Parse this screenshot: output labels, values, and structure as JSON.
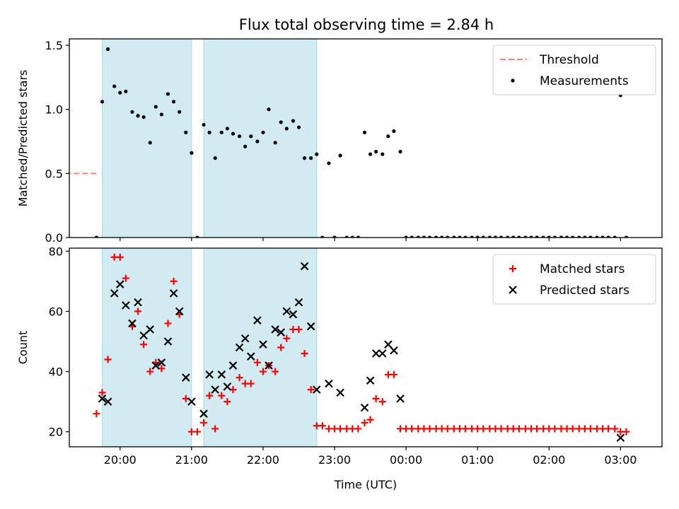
{
  "title": "Flux total observing time = 2.84 h",
  "chart_data": [
    {
      "type": "scatter",
      "ylabel": "Matched/Predicted stars",
      "ylim": [
        0,
        1.55
      ],
      "yticks": [
        0.0,
        0.5,
        1.0,
        1.5
      ],
      "ytick_labels": [
        "0.0",
        "0.5",
        "1.0",
        "1.5"
      ],
      "legend_position": "top-right",
      "series": [
        {
          "name": "Threshold",
          "kind": "line",
          "style": "dashed",
          "color": "#ff7f7f",
          "x": [
            19.67,
            3.06
          ],
          "y": [
            0.5,
            0.5
          ]
        },
        {
          "name": "Measurements",
          "kind": "dots",
          "color": "#000000",
          "x": [
            19.67,
            19.75,
            19.83,
            19.92,
            20.0,
            20.08,
            20.17,
            20.25,
            20.33,
            20.42,
            20.5,
            20.58,
            20.67,
            20.75,
            20.83,
            20.92,
            21.0,
            21.08,
            21.17,
            21.25,
            21.33,
            21.42,
            21.5,
            21.58,
            21.67,
            21.75,
            21.83,
            21.92,
            22.0,
            22.08,
            22.17,
            22.25,
            22.33,
            22.42,
            22.5,
            22.58,
            22.67,
            22.75,
            22.83,
            22.92,
            23.0,
            23.08,
            23.17,
            23.25,
            23.33,
            23.42,
            23.5,
            23.58,
            23.67,
            23.75,
            23.83,
            23.92,
            24.0,
            24.08,
            24.17,
            24.25,
            24.33,
            24.42,
            24.5,
            24.58,
            24.67,
            24.75,
            24.83,
            24.92,
            25.0,
            25.08,
            25.17,
            25.25,
            25.33,
            25.42,
            25.5,
            25.58,
            25.67,
            25.75,
            25.83,
            25.92,
            26.0,
            26.08,
            26.17,
            26.25,
            26.33,
            26.42,
            26.5,
            26.58,
            26.67,
            26.75,
            26.83,
            26.92,
            27.0,
            27.08
          ],
          "y": [
            0.0,
            1.06,
            1.47,
            1.18,
            1.13,
            1.14,
            0.98,
            0.95,
            0.94,
            0.74,
            1.02,
            0.96,
            1.12,
            1.06,
            0.98,
            0.82,
            0.66,
            0.0,
            0.88,
            0.82,
            0.62,
            0.82,
            0.85,
            0.81,
            0.79,
            0.71,
            0.79,
            0.75,
            0.82,
            1.0,
            0.74,
            0.9,
            0.85,
            0.91,
            0.86,
            0.62,
            0.62,
            0.65,
            0.0,
            0.58,
            0.0,
            0.64,
            0.0,
            0.0,
            0.0,
            0.82,
            0.65,
            0.67,
            0.65,
            0.79,
            0.83,
            0.67,
            0.0,
            0.0,
            0.0,
            0.0,
            0.0,
            0.0,
            0.0,
            0.0,
            0.0,
            0.0,
            0.0,
            0.0,
            0.0,
            0.0,
            0.0,
            0.0,
            0.0,
            0.0,
            0.0,
            0.0,
            0.0,
            0.0,
            0.0,
            0.0,
            0.0,
            0.0,
            0.0,
            0.0,
            0.0,
            0.0,
            0.0,
            0.0,
            0.0,
            0.0,
            0.0,
            0.0,
            1.11,
            0.0
          ]
        }
      ]
    },
    {
      "type": "scatter",
      "xlabel": "Time (UTC)",
      "ylabel": "Count",
      "ylim": [
        15,
        81
      ],
      "yticks": [
        20,
        40,
        60,
        80
      ],
      "ytick_labels": [
        "20",
        "40",
        "60",
        "80"
      ],
      "xticks": [
        20,
        21,
        22,
        23,
        24,
        25,
        26,
        27
      ],
      "xtick_labels": [
        "20:00",
        "21:00",
        "22:00",
        "23:00",
        "00:00",
        "01:00",
        "02:00",
        "03:00"
      ],
      "xlim": [
        19.29,
        27.58
      ],
      "legend_position": "top-right",
      "series": [
        {
          "name": "Matched stars",
          "marker": "plus",
          "color": "#ff0000",
          "x": [
            19.67,
            19.75,
            19.83,
            19.92,
            20.0,
            20.08,
            20.17,
            20.25,
            20.33,
            20.42,
            20.5,
            20.58,
            20.67,
            20.75,
            20.83,
            20.92,
            21.0,
            21.08,
            21.17,
            21.25,
            21.33,
            21.42,
            21.5,
            21.58,
            21.67,
            21.75,
            21.83,
            21.92,
            22.0,
            22.08,
            22.17,
            22.25,
            22.33,
            22.42,
            22.5,
            22.58,
            22.67,
            22.75,
            22.83,
            22.92,
            23.0,
            23.08,
            23.17,
            23.25,
            23.33,
            23.42,
            23.5,
            23.58,
            23.67,
            23.75,
            23.83,
            23.92,
            24.0,
            24.08,
            24.17,
            24.25,
            24.33,
            24.42,
            24.5,
            24.58,
            24.67,
            24.75,
            24.83,
            24.92,
            25.0,
            25.08,
            25.17,
            25.25,
            25.33,
            25.42,
            25.5,
            25.58,
            25.67,
            25.75,
            25.83,
            25.92,
            26.0,
            26.08,
            26.17,
            26.25,
            26.33,
            26.42,
            26.5,
            26.58,
            26.67,
            26.75,
            26.83,
            26.92,
            27.0,
            27.08
          ],
          "y": [
            26,
            33,
            44,
            78,
            78,
            71,
            55,
            60,
            49,
            40,
            43,
            41,
            56,
            70,
            59,
            31,
            20,
            20,
            23,
            32,
            21,
            32,
            30,
            34,
            38,
            36,
            36,
            43,
            40,
            42,
            40,
            48,
            51,
            54,
            54,
            46,
            34,
            22,
            22,
            21,
            21,
            21,
            21,
            21,
            21,
            23,
            24,
            31,
            30,
            39,
            39,
            21,
            21,
            21,
            21,
            21,
            21,
            21,
            21,
            21,
            21,
            21,
            21,
            21,
            21,
            21,
            21,
            21,
            21,
            21,
            21,
            21,
            21,
            21,
            21,
            21,
            21,
            21,
            21,
            21,
            21,
            21,
            21,
            21,
            21,
            21,
            21,
            21,
            20,
            20
          ]
        },
        {
          "name": "Predicted stars",
          "marker": "x",
          "color": "#000000",
          "x": [
            19.75,
            19.83,
            19.92,
            20.0,
            20.08,
            20.17,
            20.25,
            20.33,
            20.42,
            20.5,
            20.58,
            20.67,
            20.75,
            20.83,
            20.92,
            21.0,
            21.17,
            21.25,
            21.33,
            21.42,
            21.5,
            21.58,
            21.67,
            21.75,
            21.83,
            21.92,
            22.0,
            22.08,
            22.17,
            22.25,
            22.33,
            22.42,
            22.5,
            22.58,
            22.67,
            22.75,
            22.92,
            23.08,
            23.42,
            23.5,
            23.58,
            23.67,
            23.75,
            23.83,
            23.92,
            27.0
          ],
          "y": [
            31,
            30,
            66,
            69,
            62,
            56,
            63,
            52,
            54,
            42,
            43,
            50,
            66,
            60,
            38,
            30,
            26,
            39,
            34,
            39,
            35,
            42,
            48,
            51,
            45,
            57,
            49,
            42,
            54,
            53,
            60,
            59,
            63,
            75,
            55,
            34,
            36,
            33,
            28,
            37,
            46,
            46,
            49,
            47,
            31,
            18
          ]
        }
      ]
    }
  ],
  "observing_windows": [
    {
      "start": 19.75,
      "end": 21.0
    },
    {
      "start": 21.17,
      "end": 22.75
    }
  ],
  "colors": {
    "window_fill": "#add8e6",
    "window_edge": "#a8d8e0"
  }
}
